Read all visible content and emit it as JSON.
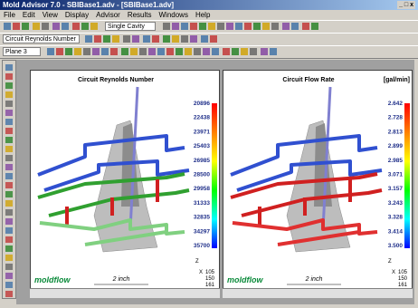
{
  "window": {
    "title": "Mold Advisor 7.0 - SBIBase1.adv - [SBIBase1.adv]",
    "menu": [
      "File",
      "Edit",
      "View",
      "Display",
      "Advisor",
      "Results",
      "Windows",
      "Help"
    ],
    "toolbar": {
      "cavity": "Single Cavity",
      "result": "Circuit Reynolds Number",
      "plane": "Plane 3"
    }
  },
  "panes": [
    {
      "title": "Circuit Reynolds Number",
      "legend": [
        "20896",
        "22438",
        "23971",
        "25403",
        "26985",
        "28500",
        "29958",
        "31333",
        "32835",
        "34297",
        "35700"
      ],
      "scale": "2 inch",
      "axis": [
        "Z",
        "X",
        "105",
        "150",
        "161"
      ],
      "logo": "moldflow"
    },
    {
      "title": "Circuit Flow Rate",
      "unit": "[gal/min]",
      "legend": [
        "2.642",
        "2.728",
        "2.813",
        "2.899",
        "2.985",
        "3.071",
        "3.157",
        "3.243",
        "3.328",
        "3.414",
        "3.500"
      ],
      "scale": "2 inch",
      "axis": [
        "Z",
        "X",
        "105",
        "150",
        "161"
      ],
      "logo": "moldflow"
    }
  ]
}
